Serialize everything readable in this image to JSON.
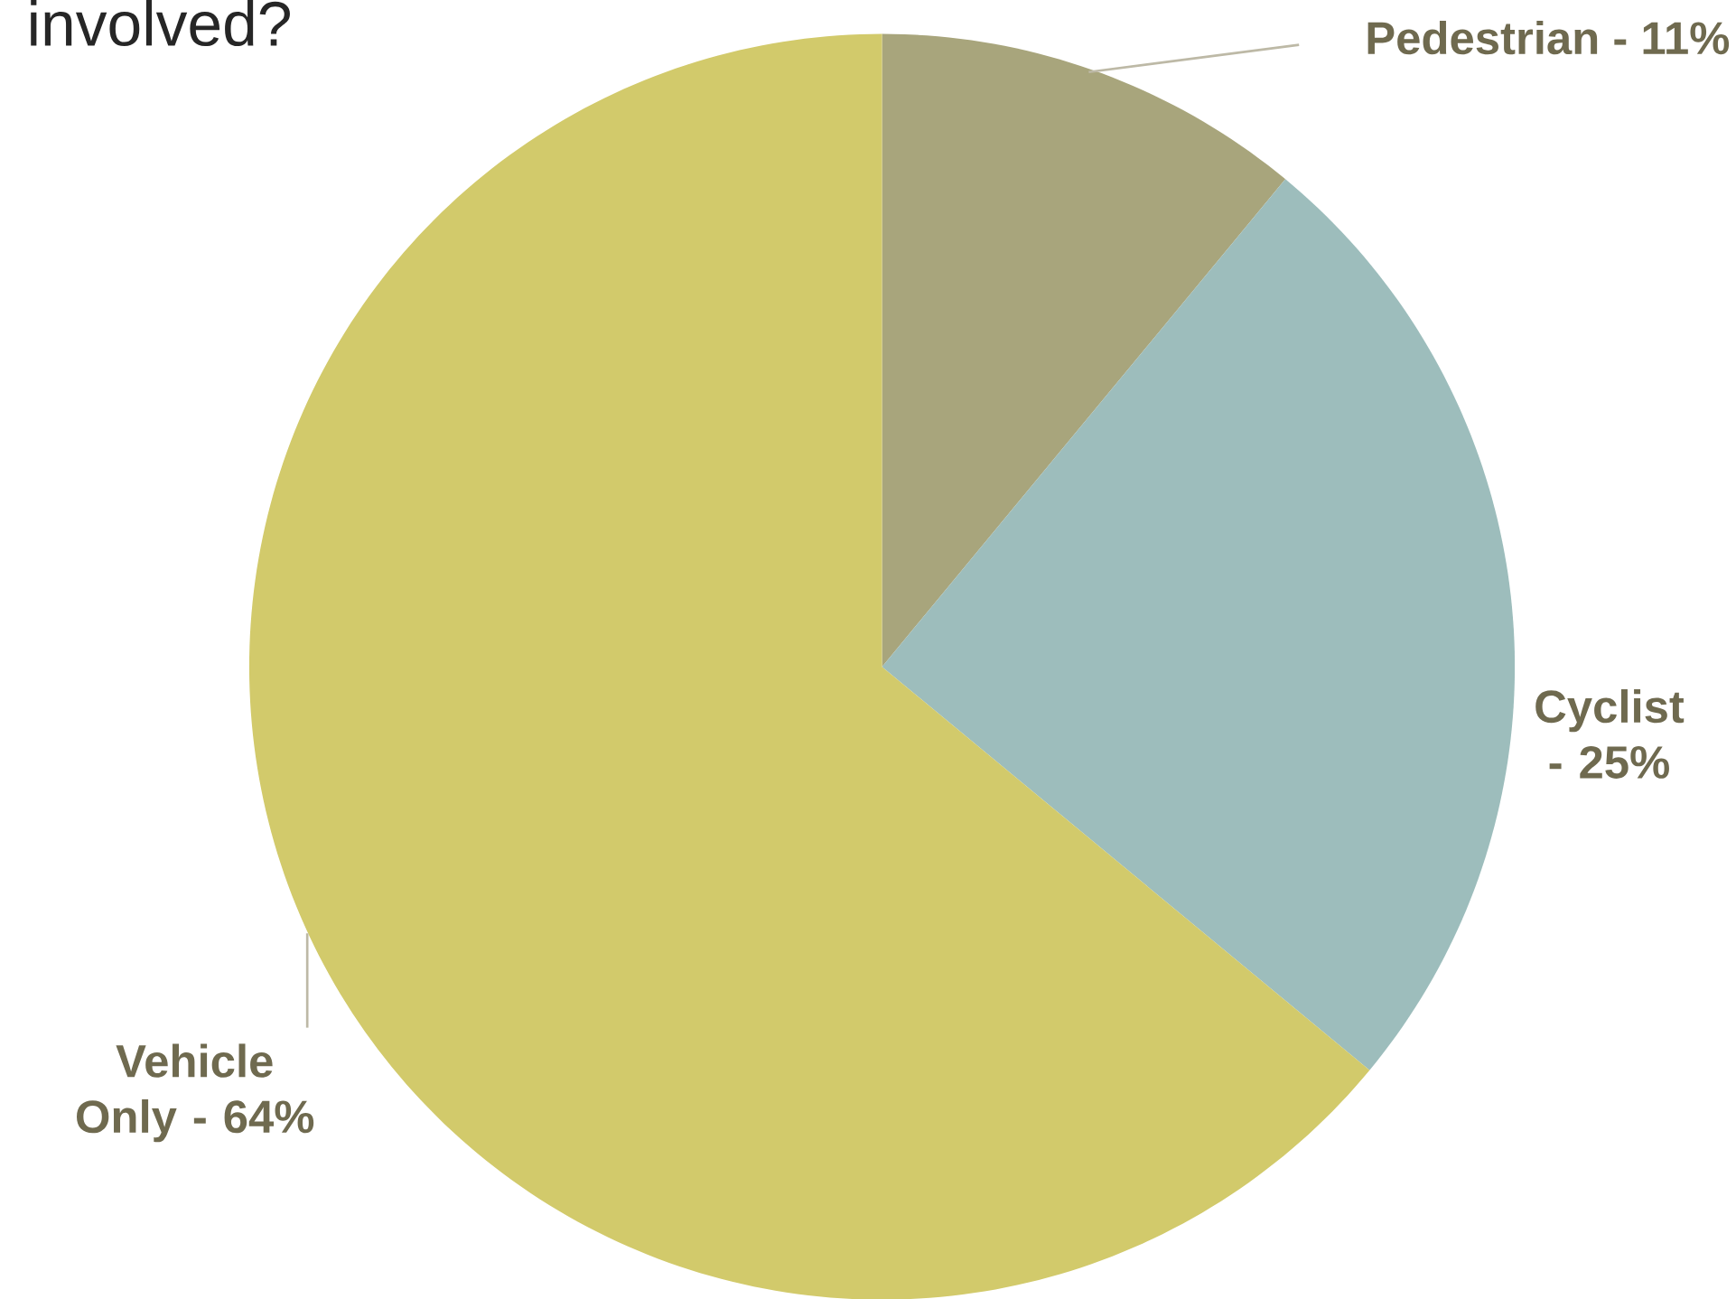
{
  "chart_data": {
    "type": "pie",
    "title": "involved?",
    "categories": [
      "Pedestrian - 11%",
      "Cyclist - 25%",
      "Vehicle Only - 64%"
    ],
    "values": [
      11,
      25,
      64
    ],
    "colors": [
      "#a8a57c",
      "#9dbdbc",
      "#d2ca6b"
    ],
    "legend": false
  }
}
